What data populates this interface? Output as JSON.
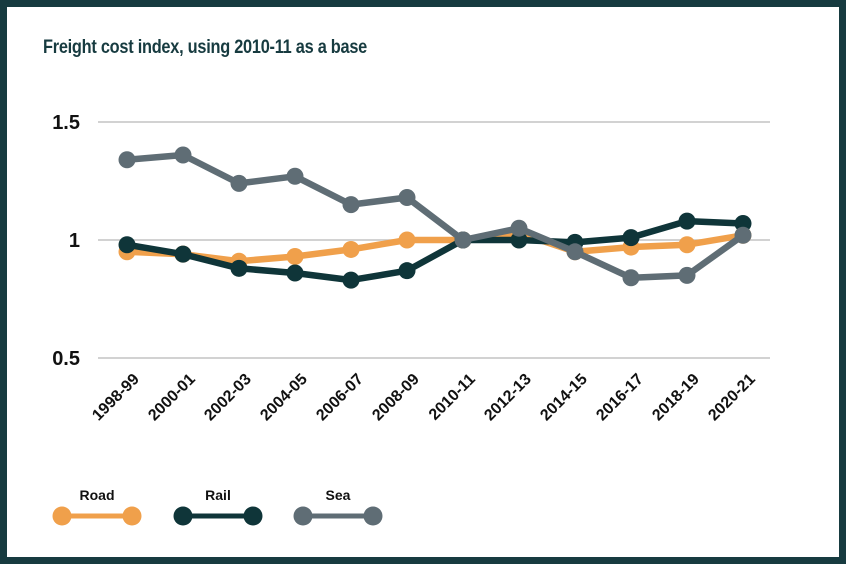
{
  "chart_data": {
    "type": "line",
    "title": "Freight cost index, using 2010-11 as a base",
    "xlabel": "",
    "ylabel": "",
    "categories": [
      "1998-99",
      "2000-01",
      "2002-03",
      "2004-05",
      "2006-07",
      "2008-09",
      "2010-11",
      "2012-13",
      "2014-15",
      "2016-17",
      "2018-19",
      "2020-21"
    ],
    "y_ticks": [
      {
        "value": 0.5,
        "label": "0.5"
      },
      {
        "value": 1,
        "label": "1"
      },
      {
        "value": 1.5,
        "label": "1.5"
      }
    ],
    "ylim": [
      0.5,
      1.5
    ],
    "grid": true,
    "legend_position": "bottom-left",
    "series": [
      {
        "name": "Road",
        "color": "#f0a04b",
        "values": [
          0.95,
          0.94,
          0.91,
          0.93,
          0.96,
          1.0,
          1.0,
          1.03,
          0.95,
          0.97,
          0.98,
          1.02
        ]
      },
      {
        "name": "Rail",
        "color": "#0f3539",
        "values": [
          0.98,
          0.94,
          0.88,
          0.86,
          0.83,
          0.87,
          1.0,
          1.0,
          0.99,
          1.01,
          1.08,
          1.07
        ]
      },
      {
        "name": "Sea",
        "color": "#5f6d75",
        "values": [
          1.34,
          1.36,
          1.24,
          1.27,
          1.15,
          1.18,
          1.0,
          1.05,
          0.95,
          0.84,
          0.85,
          1.02
        ]
      }
    ]
  }
}
